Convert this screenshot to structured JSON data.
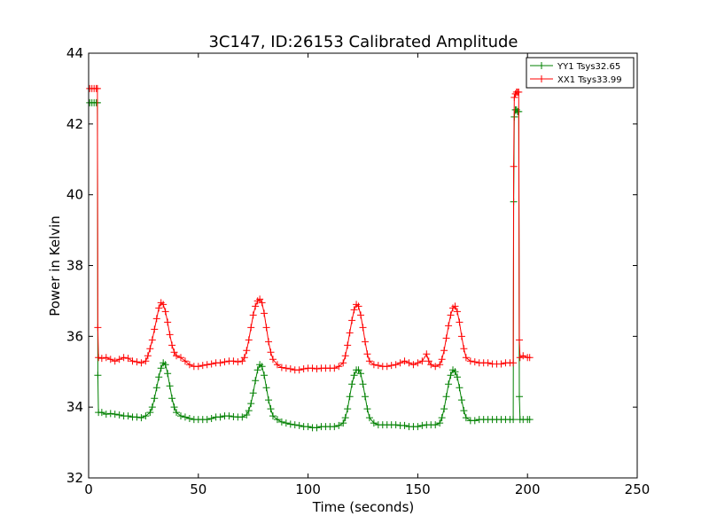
{
  "chart_data": {
    "type": "line",
    "title": "3C147, ID:26153 Calibrated Amplitude",
    "xlabel": "Time (seconds)",
    "ylabel": "Power in Kelvin",
    "xlim": [
      0,
      250
    ],
    "ylim": [
      32,
      44
    ],
    "xticks": [
      "0",
      "50",
      "100",
      "150",
      "200",
      "250"
    ],
    "yticks": [
      "32",
      "34",
      "36",
      "38",
      "40",
      "42",
      "44"
    ],
    "grid": false,
    "legend_position": "top-right",
    "marker": "+",
    "series": [
      {
        "name": "YY1 Tsys32.65",
        "color": "#008000",
        "points": [
          [
            0.5,
            42.6
          ],
          [
            1.5,
            42.6
          ],
          [
            2.5,
            42.6
          ],
          [
            3.5,
            42.6
          ],
          [
            4.0,
            42.6
          ],
          [
            4.2,
            34.9
          ],
          [
            4.5,
            33.85
          ],
          [
            6,
            33.85
          ],
          [
            8,
            33.8
          ],
          [
            10,
            33.82
          ],
          [
            12,
            33.8
          ],
          [
            14,
            33.78
          ],
          [
            16,
            33.75
          ],
          [
            18,
            33.75
          ],
          [
            20,
            33.72
          ],
          [
            22,
            33.72
          ],
          [
            24,
            33.7
          ],
          [
            26,
            33.75
          ],
          [
            28,
            33.85
          ],
          [
            29,
            34.0
          ],
          [
            30,
            34.25
          ],
          [
            31,
            34.55
          ],
          [
            32,
            34.85
          ],
          [
            33,
            35.1
          ],
          [
            34,
            35.25
          ],
          [
            35,
            35.2
          ],
          [
            36,
            34.95
          ],
          [
            37,
            34.6
          ],
          [
            38,
            34.25
          ],
          [
            39,
            34.0
          ],
          [
            40,
            33.85
          ],
          [
            42,
            33.75
          ],
          [
            44,
            33.72
          ],
          [
            46,
            33.68
          ],
          [
            48,
            33.65
          ],
          [
            50,
            33.65
          ],
          [
            52,
            33.65
          ],
          [
            54,
            33.65
          ],
          [
            56,
            33.68
          ],
          [
            58,
            33.72
          ],
          [
            60,
            33.72
          ],
          [
            62,
            33.75
          ],
          [
            64,
            33.75
          ],
          [
            66,
            33.73
          ],
          [
            68,
            33.72
          ],
          [
            70,
            33.72
          ],
          [
            72,
            33.78
          ],
          [
            73,
            33.9
          ],
          [
            74,
            34.1
          ],
          [
            75,
            34.4
          ],
          [
            76,
            34.75
          ],
          [
            77,
            35.05
          ],
          [
            78,
            35.2
          ],
          [
            79,
            35.15
          ],
          [
            80,
            34.9
          ],
          [
            81,
            34.55
          ],
          [
            82,
            34.2
          ],
          [
            83,
            33.95
          ],
          [
            84,
            33.75
          ],
          [
            86,
            33.65
          ],
          [
            88,
            33.58
          ],
          [
            90,
            33.55
          ],
          [
            92,
            33.52
          ],
          [
            94,
            33.5
          ],
          [
            96,
            33.48
          ],
          [
            98,
            33.45
          ],
          [
            100,
            33.45
          ],
          [
            102,
            33.42
          ],
          [
            104,
            33.42
          ],
          [
            106,
            33.45
          ],
          [
            108,
            33.45
          ],
          [
            110,
            33.45
          ],
          [
            112,
            33.45
          ],
          [
            114,
            33.48
          ],
          [
            116,
            33.55
          ],
          [
            117,
            33.7
          ],
          [
            118,
            33.95
          ],
          [
            119,
            34.3
          ],
          [
            120,
            34.65
          ],
          [
            121,
            34.9
          ],
          [
            122,
            35.05
          ],
          [
            123,
            35.05
          ],
          [
            124,
            34.95
          ],
          [
            125,
            34.65
          ],
          [
            126,
            34.3
          ],
          [
            127,
            33.95
          ],
          [
            128,
            33.7
          ],
          [
            130,
            33.55
          ],
          [
            132,
            33.5
          ],
          [
            134,
            33.5
          ],
          [
            136,
            33.5
          ],
          [
            138,
            33.5
          ],
          [
            140,
            33.5
          ],
          [
            142,
            33.48
          ],
          [
            144,
            33.48
          ],
          [
            146,
            33.45
          ],
          [
            148,
            33.45
          ],
          [
            150,
            33.45
          ],
          [
            152,
            33.48
          ],
          [
            154,
            33.5
          ],
          [
            156,
            33.5
          ],
          [
            158,
            33.5
          ],
          [
            160,
            33.55
          ],
          [
            161,
            33.7
          ],
          [
            162,
            33.95
          ],
          [
            163,
            34.3
          ],
          [
            164,
            34.65
          ],
          [
            165,
            34.9
          ],
          [
            166,
            35.05
          ],
          [
            167,
            35.0
          ],
          [
            168,
            34.85
          ],
          [
            169,
            34.55
          ],
          [
            170,
            34.2
          ],
          [
            171,
            33.9
          ],
          [
            172,
            33.7
          ],
          [
            174,
            33.62
          ],
          [
            176,
            33.62
          ],
          [
            178,
            33.65
          ],
          [
            180,
            33.65
          ],
          [
            182,
            33.65
          ],
          [
            184,
            33.65
          ],
          [
            186,
            33.65
          ],
          [
            188,
            33.65
          ],
          [
            190,
            33.65
          ],
          [
            192,
            33.65
          ],
          [
            193.5,
            33.65
          ],
          [
            193.7,
            39.8
          ],
          [
            194,
            42.2
          ],
          [
            194.5,
            42.4
          ],
          [
            195,
            42.4
          ],
          [
            195.5,
            42.35
          ],
          [
            196,
            42.35
          ],
          [
            196.3,
            34.3
          ],
          [
            196.6,
            33.65
          ],
          [
            198,
            33.65
          ],
          [
            200,
            33.65
          ],
          [
            201,
            33.65
          ]
        ]
      },
      {
        "name": "XX1 Tsys33.99",
        "color": "#ff0000",
        "points": [
          [
            0.5,
            43.0
          ],
          [
            1.5,
            43.0
          ],
          [
            2.5,
            43.0
          ],
          [
            3.5,
            43.0
          ],
          [
            4.0,
            43.0
          ],
          [
            4.2,
            36.25
          ],
          [
            4.5,
            35.4
          ],
          [
            6,
            35.38
          ],
          [
            8,
            35.4
          ],
          [
            10,
            35.35
          ],
          [
            12,
            35.3
          ],
          [
            14,
            35.35
          ],
          [
            16,
            35.4
          ],
          [
            18,
            35.38
          ],
          [
            20,
            35.3
          ],
          [
            22,
            35.28
          ],
          [
            24,
            35.25
          ],
          [
            26,
            35.3
          ],
          [
            27,
            35.45
          ],
          [
            28,
            35.65
          ],
          [
            29,
            35.9
          ],
          [
            30,
            36.2
          ],
          [
            31,
            36.5
          ],
          [
            32,
            36.8
          ],
          [
            33,
            36.95
          ],
          [
            34,
            36.9
          ],
          [
            35,
            36.7
          ],
          [
            36,
            36.4
          ],
          [
            37,
            36.05
          ],
          [
            38,
            35.75
          ],
          [
            39,
            35.55
          ],
          [
            40,
            35.45
          ],
          [
            42,
            35.4
          ],
          [
            44,
            35.3
          ],
          [
            46,
            35.2
          ],
          [
            48,
            35.15
          ],
          [
            50,
            35.15
          ],
          [
            52,
            35.18
          ],
          [
            54,
            35.2
          ],
          [
            56,
            35.22
          ],
          [
            58,
            35.25
          ],
          [
            60,
            35.25
          ],
          [
            62,
            35.28
          ],
          [
            64,
            35.3
          ],
          [
            66,
            35.3
          ],
          [
            68,
            35.28
          ],
          [
            70,
            35.3
          ],
          [
            71,
            35.4
          ],
          [
            72,
            35.6
          ],
          [
            73,
            35.9
          ],
          [
            74,
            36.25
          ],
          [
            75,
            36.6
          ],
          [
            76,
            36.85
          ],
          [
            77,
            37.0
          ],
          [
            78,
            37.05
          ],
          [
            79,
            36.95
          ],
          [
            80,
            36.65
          ],
          [
            81,
            36.25
          ],
          [
            82,
            35.85
          ],
          [
            83,
            35.55
          ],
          [
            84,
            35.35
          ],
          [
            86,
            35.2
          ],
          [
            88,
            35.12
          ],
          [
            90,
            35.1
          ],
          [
            92,
            35.08
          ],
          [
            94,
            35.05
          ],
          [
            96,
            35.05
          ],
          [
            98,
            35.08
          ],
          [
            100,
            35.1
          ],
          [
            102,
            35.1
          ],
          [
            104,
            35.08
          ],
          [
            106,
            35.1
          ],
          [
            108,
            35.1
          ],
          [
            110,
            35.1
          ],
          [
            112,
            35.1
          ],
          [
            114,
            35.15
          ],
          [
            116,
            35.25
          ],
          [
            117,
            35.45
          ],
          [
            118,
            35.75
          ],
          [
            119,
            36.1
          ],
          [
            120,
            36.45
          ],
          [
            121,
            36.75
          ],
          [
            122,
            36.9
          ],
          [
            123,
            36.85
          ],
          [
            124,
            36.6
          ],
          [
            125,
            36.25
          ],
          [
            126,
            35.85
          ],
          [
            127,
            35.5
          ],
          [
            128,
            35.3
          ],
          [
            130,
            35.2
          ],
          [
            132,
            35.18
          ],
          [
            134,
            35.15
          ],
          [
            136,
            35.15
          ],
          [
            138,
            35.18
          ],
          [
            140,
            35.2
          ],
          [
            142,
            35.25
          ],
          [
            144,
            35.3
          ],
          [
            146,
            35.25
          ],
          [
            148,
            35.2
          ],
          [
            150,
            35.25
          ],
          [
            152,
            35.3
          ],
          [
            154,
            35.5
          ],
          [
            155,
            35.3
          ],
          [
            156,
            35.2
          ],
          [
            158,
            35.15
          ],
          [
            160,
            35.2
          ],
          [
            161,
            35.35
          ],
          [
            162,
            35.6
          ],
          [
            163,
            35.95
          ],
          [
            164,
            36.3
          ],
          [
            165,
            36.6
          ],
          [
            166,
            36.8
          ],
          [
            167,
            36.85
          ],
          [
            168,
            36.7
          ],
          [
            169,
            36.4
          ],
          [
            170,
            36.0
          ],
          [
            171,
            35.65
          ],
          [
            172,
            35.4
          ],
          [
            174,
            35.3
          ],
          [
            176,
            35.28
          ],
          [
            178,
            35.25
          ],
          [
            180,
            35.25
          ],
          [
            182,
            35.25
          ],
          [
            184,
            35.22
          ],
          [
            186,
            35.22
          ],
          [
            188,
            35.22
          ],
          [
            190,
            35.25
          ],
          [
            192,
            35.25
          ],
          [
            193.5,
            35.25
          ],
          [
            193.7,
            40.8
          ],
          [
            194,
            42.75
          ],
          [
            194.5,
            42.85
          ],
          [
            195,
            42.9
          ],
          [
            195.5,
            42.9
          ],
          [
            196,
            42.9
          ],
          [
            196.3,
            35.9
          ],
          [
            196.6,
            35.4
          ],
          [
            198,
            35.45
          ],
          [
            200,
            35.4
          ],
          [
            201,
            35.4
          ]
        ]
      }
    ]
  }
}
